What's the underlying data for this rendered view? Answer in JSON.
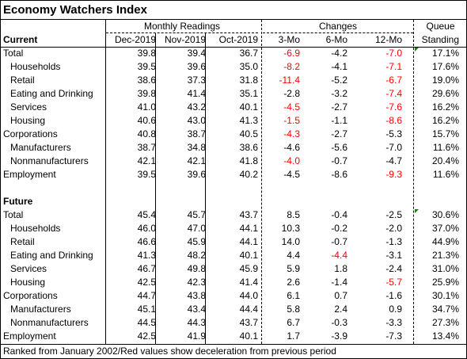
{
  "title": "Economy Watchers Index",
  "headers": {
    "monthly_readings": "Monthly Readings",
    "changes": "Changes",
    "queue": "Queue",
    "standing": "Standing",
    "dec": "Dec-2019",
    "nov": "Nov-2019",
    "oct": "Oct-2019",
    "m3": "3-Mo",
    "m6": "6-Mo",
    "m12": "12-Mo"
  },
  "current": {
    "label": "Current",
    "rows": [
      {
        "name": "Total",
        "indent": false,
        "dec": "39.8",
        "nov": "39.4",
        "oct": "36.7",
        "m3": "-6.9",
        "m3_red": true,
        "m6": "-4.2",
        "m6_red": false,
        "m12": "-7.0",
        "m12_red": true,
        "queue": "17.1%",
        "marker": true
      },
      {
        "name": "Households",
        "indent": true,
        "dec": "39.5",
        "nov": "39.6",
        "oct": "35.0",
        "m3": "-8.2",
        "m3_red": true,
        "m6": "-4.1",
        "m6_red": false,
        "m12": "-7.1",
        "m12_red": true,
        "queue": "17.6%",
        "marker": false
      },
      {
        "name": "Retail",
        "indent": true,
        "dec": "38.6",
        "nov": "37.3",
        "oct": "31.8",
        "m3": "-11.4",
        "m3_red": true,
        "m6": "-5.2",
        "m6_red": false,
        "m12": "-6.7",
        "m12_red": true,
        "queue": "19.0%",
        "marker": false
      },
      {
        "name": "Eating and Drinking",
        "indent": true,
        "dec": "39.8",
        "nov": "41.4",
        "oct": "35.1",
        "m3": "-2.8",
        "m3_red": false,
        "m6": "-3.2",
        "m6_red": false,
        "m12": "-7.4",
        "m12_red": true,
        "queue": "29.6%",
        "marker": false
      },
      {
        "name": "Services",
        "indent": true,
        "dec": "41.0",
        "nov": "43.2",
        "oct": "40.1",
        "m3": "-4.5",
        "m3_red": true,
        "m6": "-2.7",
        "m6_red": false,
        "m12": "-7.6",
        "m12_red": true,
        "queue": "16.2%",
        "marker": false
      },
      {
        "name": "Housing",
        "indent": true,
        "dec": "40.6",
        "nov": "43.0",
        "oct": "41.3",
        "m3": "-1.5",
        "m3_red": true,
        "m6": "-1.1",
        "m6_red": false,
        "m12": "-8.6",
        "m12_red": true,
        "queue": "16.2%",
        "marker": false
      },
      {
        "name": "Corporations",
        "indent": false,
        "dec": "40.8",
        "nov": "38.7",
        "oct": "40.5",
        "m3": "-4.3",
        "m3_red": true,
        "m6": "-2.7",
        "m6_red": false,
        "m12": "-5.3",
        "m12_red": false,
        "queue": "15.7%",
        "marker": false
      },
      {
        "name": "Manufacturers",
        "indent": true,
        "dec": "38.7",
        "nov": "34.8",
        "oct": "38.6",
        "m3": "-4.6",
        "m3_red": false,
        "m6": "-5.6",
        "m6_red": false,
        "m12": "-7.0",
        "m12_red": false,
        "queue": "11.6%",
        "marker": false
      },
      {
        "name": "Nonmanufacturers",
        "indent": true,
        "dec": "42.1",
        "nov": "42.1",
        "oct": "41.8",
        "m3": "-4.0",
        "m3_red": true,
        "m6": "-0.7",
        "m6_red": false,
        "m12": "-4.7",
        "m12_red": false,
        "queue": "20.4%",
        "marker": false
      },
      {
        "name": "Employment",
        "indent": false,
        "dec": "39.5",
        "nov": "39.6",
        "oct": "40.2",
        "m3": "-4.5",
        "m3_red": false,
        "m6": "-8.6",
        "m6_red": false,
        "m12": "-9.3",
        "m12_red": true,
        "queue": "11.6%",
        "marker": false
      }
    ]
  },
  "future": {
    "label": "Future",
    "rows": [
      {
        "name": "Total",
        "indent": false,
        "dec": "45.4",
        "nov": "45.7",
        "oct": "43.7",
        "m3": "8.5",
        "m3_red": false,
        "m6": "-0.4",
        "m6_red": false,
        "m12": "-2.5",
        "m12_red": false,
        "queue": "30.6%",
        "marker": true
      },
      {
        "name": "Households",
        "indent": true,
        "dec": "46.0",
        "nov": "47.0",
        "oct": "44.1",
        "m3": "10.3",
        "m3_red": false,
        "m6": "-0.2",
        "m6_red": false,
        "m12": "-2.0",
        "m12_red": false,
        "queue": "37.0%",
        "marker": false
      },
      {
        "name": "Retail",
        "indent": true,
        "dec": "46.6",
        "nov": "45.9",
        "oct": "44.1",
        "m3": "14.0",
        "m3_red": false,
        "m6": "-0.7",
        "m6_red": false,
        "m12": "-1.3",
        "m12_red": false,
        "queue": "44.9%",
        "marker": false
      },
      {
        "name": "Eating and Drinking",
        "indent": true,
        "dec": "41.3",
        "nov": "48.2",
        "oct": "40.1",
        "m3": "4.4",
        "m3_red": false,
        "m6": "-4.4",
        "m6_red": true,
        "m12": "-3.1",
        "m12_red": false,
        "queue": "21.3%",
        "marker": false
      },
      {
        "name": "Services",
        "indent": true,
        "dec": "46.7",
        "nov": "49.8",
        "oct": "45.9",
        "m3": "5.9",
        "m3_red": false,
        "m6": "1.8",
        "m6_red": false,
        "m12": "-2.4",
        "m12_red": false,
        "queue": "31.0%",
        "marker": false
      },
      {
        "name": "Housing",
        "indent": true,
        "dec": "42.5",
        "nov": "42.3",
        "oct": "41.4",
        "m3": "2.6",
        "m3_red": false,
        "m6": "-1.4",
        "m6_red": false,
        "m12": "-5.7",
        "m12_red": true,
        "queue": "25.9%",
        "marker": false
      },
      {
        "name": "Corporations",
        "indent": false,
        "dec": "44.7",
        "nov": "43.8",
        "oct": "44.0",
        "m3": "6.1",
        "m3_red": false,
        "m6": "0.7",
        "m6_red": false,
        "m12": "-1.6",
        "m12_red": false,
        "queue": "30.1%",
        "marker": false
      },
      {
        "name": "Manufacturers",
        "indent": true,
        "dec": "45.1",
        "nov": "43.4",
        "oct": "44.4",
        "m3": "5.8",
        "m3_red": false,
        "m6": "2.4",
        "m6_red": false,
        "m12": "0.9",
        "m12_red": false,
        "queue": "34.7%",
        "marker": false
      },
      {
        "name": "Nonmanufacturers",
        "indent": true,
        "dec": "44.5",
        "nov": "44.3",
        "oct": "43.7",
        "m3": "6.7",
        "m3_red": false,
        "m6": "-0.3",
        "m6_red": false,
        "m12": "-3.3",
        "m12_red": false,
        "queue": "27.3%",
        "marker": false
      },
      {
        "name": "Employment",
        "indent": false,
        "dec": "42.5",
        "nov": "41.9",
        "oct": "40.1",
        "m3": "1.7",
        "m3_red": false,
        "m6": "-3.9",
        "m6_red": false,
        "m12": "-7.3",
        "m12_red": false,
        "queue": "13.4%",
        "marker": false
      }
    ]
  },
  "footer": "Ranked from January 2002/Red values show deceleration from previous period",
  "colors": {
    "negative_highlight": "#ff0000",
    "marker": "#1a7a1a"
  }
}
